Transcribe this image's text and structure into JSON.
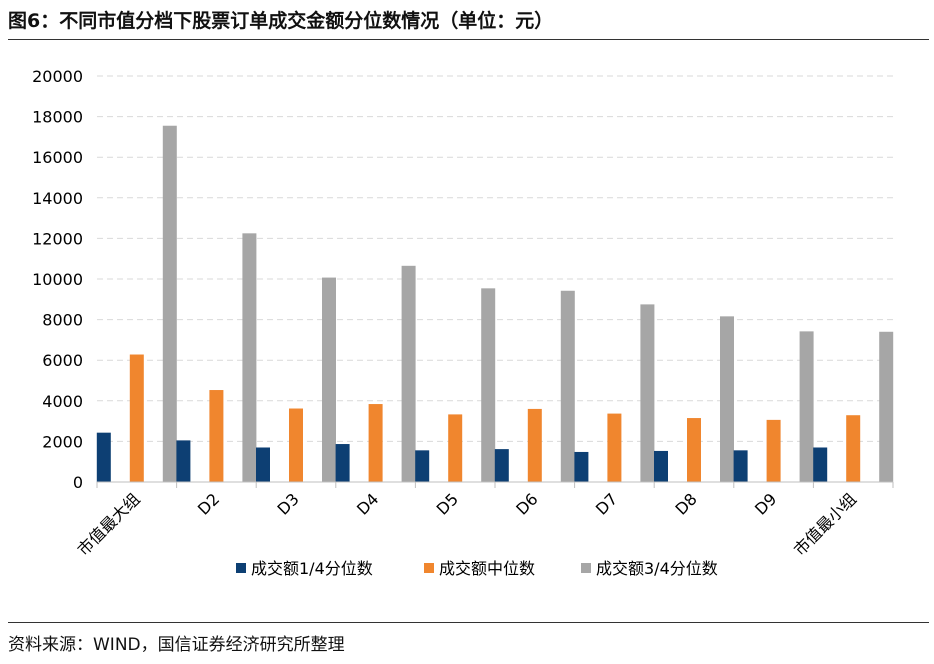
{
  "title": "图6：不同市值分档下股票订单成交金额分位数情况（单位：元）",
  "source": "资料来源：WIND，国信证券经济研究所整理",
  "chart_data": {
    "type": "bar",
    "categories": [
      "市值最大组",
      "D2",
      "D3",
      "D4",
      "D5",
      "D6",
      "D7",
      "D8",
      "D9",
      "市值最小组"
    ],
    "ylim": [
      0,
      20000
    ],
    "yticks": [
      0,
      2000,
      4000,
      6000,
      8000,
      10000,
      12000,
      14000,
      16000,
      18000,
      20000
    ],
    "grid": true,
    "legend_position": "bottom",
    "series": [
      {
        "name": "成交额1/4分位数",
        "color": "#0d3f73",
        "values": [
          2430,
          2050,
          1700,
          1870,
          1560,
          1620,
          1480,
          1530,
          1560,
          1700
        ]
      },
      {
        "name": "成交额中位数",
        "color": "#f0862e",
        "values": [
          6280,
          4530,
          3620,
          3840,
          3330,
          3600,
          3370,
          3150,
          3060,
          3290
        ]
      },
      {
        "name": "成交额3/4分位数",
        "color": "#a6a6a6",
        "values": [
          17550,
          12250,
          10070,
          10650,
          9540,
          9420,
          8750,
          8160,
          7420,
          7400
        ]
      }
    ]
  }
}
